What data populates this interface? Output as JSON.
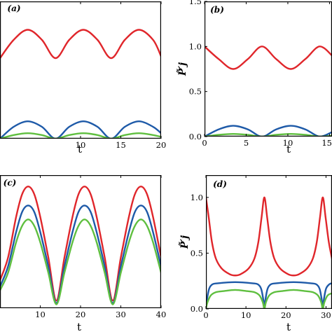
{
  "chart_data": [
    {
      "id": "a",
      "type": "line",
      "panel_label": "(a)",
      "xlabel": "t",
      "ylabel": "",
      "xlim": [
        0,
        20
      ],
      "ylim": [
        0,
        1.5
      ],
      "x_ticks": [
        10,
        15,
        20
      ],
      "y_ticks": [],
      "series": [
        {
          "color": "#e0262b",
          "x": [
            0,
            1.7,
            3.45,
            5.2,
            6.9,
            8.6,
            10.35,
            12.1,
            13.8,
            15.5,
            17.25,
            19,
            20
          ],
          "values": [
            0.88,
            1.08,
            1.19,
            1.08,
            0.88,
            1.08,
            1.19,
            1.08,
            0.88,
            1.08,
            1.19,
            1.08,
            0.9
          ]
        },
        {
          "color": "#1e5aa8",
          "x": [
            0,
            1.7,
            3.45,
            5.2,
            6.9,
            8.6,
            10.35,
            12.1,
            13.8,
            15.5,
            17.25,
            19,
            20
          ],
          "values": [
            0.0,
            0.13,
            0.19,
            0.13,
            0.0,
            0.13,
            0.19,
            0.13,
            0.0,
            0.13,
            0.19,
            0.13,
            0.06
          ]
        },
        {
          "color": "#5fbf3f",
          "x": [
            0,
            1.7,
            3.45,
            5.2,
            6.9,
            8.6,
            10.35,
            12.1,
            13.8,
            15.5,
            17.25,
            19,
            20
          ],
          "values": [
            0.0,
            0.04,
            0.06,
            0.04,
            0.0,
            0.04,
            0.06,
            0.04,
            0.0,
            0.04,
            0.06,
            0.04,
            0.02
          ]
        }
      ]
    },
    {
      "id": "b",
      "type": "line",
      "panel_label": "(b)",
      "xlabel": "t",
      "ylabel": "P̃′j",
      "xlim": [
        0,
        15.3
      ],
      "ylim": [
        0,
        1.5
      ],
      "x_ticks": [
        0,
        5,
        10,
        15
      ],
      "x_tick_labels": [
        "0",
        "5",
        "10",
        "15"
      ],
      "y_ticks": [
        0.0,
        0.5,
        1.0,
        1.5
      ],
      "y_tick_labels": [
        "0.0",
        "0.5",
        "1.0",
        "1.5"
      ],
      "series": [
        {
          "color": "#e0262b",
          "x": [
            0,
            1.7,
            3.45,
            5.2,
            6.9,
            8.6,
            10.35,
            12.1,
            13.8,
            15.3
          ],
          "values": [
            1.0,
            0.86,
            0.75,
            0.86,
            1.0,
            0.86,
            0.75,
            0.86,
            1.0,
            0.9
          ]
        },
        {
          "color": "#1e5aa8",
          "x": [
            0,
            1.7,
            3.45,
            5.2,
            6.9,
            8.6,
            10.35,
            12.1,
            13.8,
            15.3
          ],
          "values": [
            0.0,
            0.08,
            0.12,
            0.08,
            0.0,
            0.08,
            0.12,
            0.08,
            0.0,
            0.05
          ]
        },
        {
          "color": "#5fbf3f",
          "x": [
            0,
            1.7,
            3.45,
            5.2,
            6.9,
            8.6,
            10.35,
            12.1,
            13.8,
            15.3
          ],
          "values": [
            0.0,
            0.02,
            0.03,
            0.02,
            0.0,
            0.02,
            0.03,
            0.02,
            0.0,
            0.01
          ]
        }
      ]
    },
    {
      "id": "c",
      "type": "line",
      "panel_label": "(c)",
      "xlabel": "t",
      "ylabel": "",
      "xlim": [
        0,
        40
      ],
      "ylim": [
        0,
        1.05
      ],
      "x_ticks": [
        10,
        20,
        30,
        40
      ],
      "y_ticks": [],
      "series": [
        {
          "color": "#e0262b",
          "x": [
            0,
            2,
            4,
            5.5,
            7,
            8.5,
            10,
            12,
            14,
            16,
            18,
            19.5,
            21,
            22.5,
            24,
            26,
            28,
            30,
            32,
            33.5,
            35,
            36.5,
            38,
            40
          ],
          "values": [
            0.22,
            0.4,
            0.72,
            0.9,
            0.96,
            0.9,
            0.72,
            0.4,
            0.06,
            0.4,
            0.72,
            0.9,
            0.96,
            0.9,
            0.72,
            0.4,
            0.06,
            0.4,
            0.72,
            0.9,
            0.96,
            0.9,
            0.72,
            0.4
          ]
        },
        {
          "color": "#1e5aa8",
          "x": [
            0,
            2,
            4,
            5.5,
            7,
            8.5,
            10,
            12,
            14,
            16,
            18,
            19.5,
            21,
            22.5,
            24,
            26,
            28,
            30,
            32,
            33.5,
            35,
            36.5,
            38,
            40
          ],
          "values": [
            0.17,
            0.33,
            0.6,
            0.76,
            0.81,
            0.76,
            0.6,
            0.33,
            0.04,
            0.33,
            0.6,
            0.76,
            0.81,
            0.76,
            0.6,
            0.33,
            0.04,
            0.33,
            0.6,
            0.76,
            0.81,
            0.76,
            0.6,
            0.33
          ]
        },
        {
          "color": "#5fbf3f",
          "x": [
            0,
            2,
            4,
            5.5,
            7,
            8.5,
            10,
            12,
            14,
            16,
            18,
            19.5,
            21,
            22.5,
            24,
            26,
            28,
            30,
            32,
            33.5,
            35,
            36.5,
            38,
            40
          ],
          "values": [
            0.14,
            0.28,
            0.52,
            0.65,
            0.7,
            0.65,
            0.52,
            0.28,
            0.03,
            0.28,
            0.52,
            0.65,
            0.7,
            0.65,
            0.52,
            0.28,
            0.03,
            0.28,
            0.52,
            0.65,
            0.7,
            0.65,
            0.52,
            0.28
          ]
        }
      ]
    },
    {
      "id": "d",
      "type": "line",
      "panel_label": "(d)",
      "xlabel": "t",
      "ylabel": "P̃′j",
      "xlim": [
        0,
        31.5
      ],
      "ylim": [
        0,
        1.2
      ],
      "x_ticks": [
        0,
        10,
        20,
        30
      ],
      "x_tick_labels": [
        "0",
        "10",
        "20",
        "30"
      ],
      "y_ticks": [
        0.0,
        0.5,
        1.0
      ],
      "y_tick_labels": [
        "0.0",
        "0.5",
        "1.0"
      ],
      "series": [
        {
          "color": "#e0262b",
          "x": [
            0,
            0.7,
            1.5,
            2.5,
            4,
            6,
            7.3,
            8.6,
            10.6,
            12.1,
            13.1,
            13.9,
            14.6,
            15.3,
            16.1,
            17.1,
            18.6,
            20.6,
            21.9,
            23.2,
            25.2,
            26.7,
            27.7,
            28.5,
            29.2,
            29.9,
            30.7,
            31.5
          ],
          "values": [
            1.0,
            0.82,
            0.6,
            0.45,
            0.36,
            0.31,
            0.3,
            0.31,
            0.36,
            0.45,
            0.6,
            0.82,
            1.0,
            0.82,
            0.6,
            0.45,
            0.36,
            0.31,
            0.3,
            0.31,
            0.36,
            0.45,
            0.6,
            0.82,
            1.0,
            0.82,
            0.6,
            0.45
          ]
        },
        {
          "color": "#1e5aa8",
          "x": [
            0,
            0.25,
            0.8,
            1.6,
            3,
            7.3,
            11.6,
            13,
            13.8,
            14.35,
            14.6,
            14.85,
            15.4,
            16.2,
            17.6,
            21.9,
            26.2,
            27.6,
            28.4,
            28.95,
            29.2,
            29.45,
            30,
            30.8,
            31.5
          ],
          "values": [
            0.0,
            0.08,
            0.18,
            0.22,
            0.23,
            0.24,
            0.23,
            0.22,
            0.18,
            0.08,
            0.0,
            0.08,
            0.18,
            0.22,
            0.23,
            0.24,
            0.23,
            0.22,
            0.18,
            0.08,
            0.0,
            0.08,
            0.18,
            0.22,
            0.23
          ]
        },
        {
          "color": "#5fbf3f",
          "x": [
            0,
            0.4,
            1.2,
            2.5,
            4.5,
            7.3,
            10.1,
            12.1,
            13.4,
            14.2,
            14.6,
            15.0,
            15.8,
            17.1,
            19.1,
            21.9,
            24.7,
            26.7,
            28.0,
            28.8,
            29.2,
            29.6,
            30.4,
            31.5
          ],
          "values": [
            0.0,
            0.06,
            0.12,
            0.15,
            0.16,
            0.17,
            0.16,
            0.15,
            0.12,
            0.06,
            0.0,
            0.06,
            0.12,
            0.15,
            0.16,
            0.17,
            0.16,
            0.15,
            0.12,
            0.06,
            0.0,
            0.06,
            0.12,
            0.14
          ]
        }
      ]
    }
  ]
}
